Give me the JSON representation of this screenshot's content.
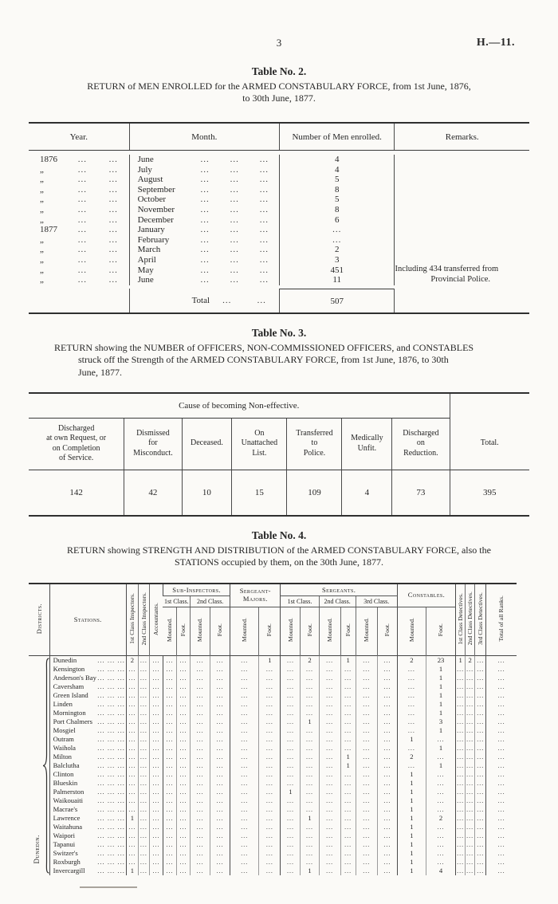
{
  "page": {
    "number": "3",
    "reference": "H.—11."
  },
  "leader": "...",
  "ditto": "„",
  "ink_color": "#262626",
  "paper_color": "#fbfaf7",
  "table2": {
    "title": "Table No. 2.",
    "subtitle_line1": "RETURN of MEN ENROLLED for the ARMED CONSTABULARY FORCE, from 1st June, 1876,",
    "subtitle_line2": "to 30th June, 1877.",
    "headers": {
      "year": "Year.",
      "month": "Month.",
      "number": "Number of Men enrolled.",
      "remarks": "Remarks."
    },
    "rows": [
      {
        "year": "1876",
        "month": "June",
        "number": "4"
      },
      {
        "year": "„",
        "month": "July",
        "number": "4"
      },
      {
        "year": "„",
        "month": "August",
        "number": "5"
      },
      {
        "year": "„",
        "month": "September",
        "number": "8"
      },
      {
        "year": "„",
        "month": "October",
        "number": "5"
      },
      {
        "year": "„",
        "month": "November",
        "number": "8"
      },
      {
        "year": "„",
        "month": "December",
        "number": "6"
      },
      {
        "year": "1877",
        "month": "January",
        "number": "..."
      },
      {
        "year": "„",
        "month": "February",
        "number": "..."
      },
      {
        "year": "„",
        "month": "March",
        "number": "2"
      },
      {
        "year": "„",
        "month": "April",
        "number": "3"
      },
      {
        "year": "„",
        "month": "May",
        "number": "451"
      },
      {
        "year": "„",
        "month": "June",
        "number": "11"
      }
    ],
    "total_label": "Total",
    "total_value": "507",
    "remark_line1": "Including 434 transferred from",
    "remark_line2": "Provincial Police."
  },
  "table3": {
    "title": "Table No. 3.",
    "subtitle_line1": "RETURN showing the NUMBER of OFFICERS, NON-COMMISSIONED OFFICERS, and CONSTABLES",
    "subtitle_line2": "struck off the Strength of the ARMED CONSTABULARY FORCE, from 1st June, 1876, to 30th",
    "subtitle_line3": "June, 1877.",
    "cause_header": "Cause of becoming Non-effective.",
    "columns": [
      {
        "label": "Discharged\nat own Request, or\non Completion\nof Service.",
        "value": "142"
      },
      {
        "label": "Dismissed\nfor\nMisconduct.",
        "value": "42"
      },
      {
        "label": "Deceased.",
        "value": "10"
      },
      {
        "label": "On\nUnattached\nList.",
        "value": "15"
      },
      {
        "label": "Transferred\nto\nPolice.",
        "value": "109"
      },
      {
        "label": "Medically\nUnfit.",
        "value": "4"
      },
      {
        "label": "Discharged\non\nReduction.",
        "value": "73"
      },
      {
        "label": "Total.",
        "value": "395"
      }
    ]
  },
  "table4": {
    "title": "Table No. 4.",
    "subtitle_line1": "RETURN showing STRENGTH AND DISTRIBUTION of the ARMED CONSTABULARY FORCE, also the",
    "subtitle_line2": "STATIONS occupied by them, on the 30th June, 1877.",
    "headers": {
      "districts": "Districts.",
      "stations": "Stations.",
      "inspectors_1st": "1st Class Inspectors.",
      "inspectors_2nd": "2nd Class Inspectors.",
      "accountants": "Accountants.",
      "sub_inspectors": "Sub-Inspectors.",
      "sergeant_majors": "Sergeant-Majors.",
      "sergeants": "Sergeants.",
      "constables": "Constables.",
      "class_1st": "1st Class.",
      "class_2nd": "2nd Class.",
      "class_3rd": "3rd Class.",
      "mounted": "Mounted.",
      "foot": "Foot.",
      "detectives_1st": "1st Class Detectives.",
      "detectives_2nd": "2nd Class Detectives.",
      "detectives_3rd": "3rd Class Detectives.",
      "total": "Total of all Ranks."
    },
    "district_label": "Dunedin.",
    "value_columns": [
      "inspectors_1st",
      "inspectors_2nd",
      "accountants",
      "si_1st_mounted",
      "si_1st_foot",
      "si_2nd_mounted",
      "si_2nd_foot",
      "sm_mounted",
      "sm_foot",
      "sgt_1st_mounted",
      "sgt_1st_foot",
      "sgt_2nd_mounted",
      "sgt_2nd_foot",
      "sgt_3rd_mounted",
      "sgt_3rd_foot",
      "constables_mounted",
      "constables_foot",
      "detectives_1st",
      "detectives_2nd",
      "detectives_3rd",
      "total"
    ],
    "rows": [
      {
        "station": "Dunedin",
        "values": [
          "2",
          "...",
          "...",
          "...",
          "...",
          "...",
          "...",
          "...",
          "1",
          "...",
          "2",
          "...",
          "1",
          "...",
          "...",
          "2",
          "23",
          "1",
          "2",
          "...",
          "..."
        ]
      },
      {
        "station": "Kensington",
        "values": [
          "...",
          "...",
          "...",
          "...",
          "...",
          "...",
          "...",
          "...",
          "...",
          "...",
          "...",
          "...",
          "...",
          "...",
          "...",
          "...",
          "1",
          "...",
          "...",
          "...",
          "..."
        ]
      },
      {
        "station": "Anderson's Bay",
        "values": [
          "...",
          "...",
          "...",
          "...",
          "...",
          "...",
          "...",
          "...",
          "...",
          "...",
          "...",
          "...",
          "...",
          "...",
          "...",
          "...",
          "1",
          "...",
          "...",
          "...",
          "..."
        ]
      },
      {
        "station": "Caversham",
        "values": [
          "...",
          "...",
          "...",
          "...",
          "...",
          "...",
          "...",
          "...",
          "...",
          "...",
          "...",
          "...",
          "...",
          "...",
          "...",
          "...",
          "1",
          "...",
          "...",
          "...",
          "..."
        ]
      },
      {
        "station": "Green Island",
        "values": [
          "...",
          "...",
          "...",
          "...",
          "...",
          "...",
          "...",
          "...",
          "...",
          "...",
          "...",
          "...",
          "...",
          "...",
          "...",
          "...",
          "1",
          "...",
          "...",
          "...",
          "..."
        ]
      },
      {
        "station": "Linden",
        "values": [
          "...",
          "...",
          "...",
          "...",
          "...",
          "...",
          "...",
          "...",
          "...",
          "...",
          "...",
          "...",
          "...",
          "...",
          "...",
          "...",
          "1",
          "...",
          "...",
          "...",
          "..."
        ]
      },
      {
        "station": "Mornington",
        "values": [
          "...",
          "...",
          "...",
          "...",
          "...",
          "...",
          "...",
          "...",
          "...",
          "...",
          "...",
          "...",
          "...",
          "...",
          "...",
          "...",
          "1",
          "...",
          "...",
          "...",
          "..."
        ]
      },
      {
        "station": "Port Chalmers",
        "values": [
          "...",
          "...",
          "...",
          "...",
          "...",
          "...",
          "...",
          "...",
          "...",
          "...",
          "1",
          "...",
          "...",
          "...",
          "...",
          "...",
          "3",
          "...",
          "...",
          "...",
          "..."
        ]
      },
      {
        "station": "Mosgiel",
        "values": [
          "...",
          "...",
          "...",
          "...",
          "...",
          "...",
          "...",
          "...",
          "...",
          "...",
          "...",
          "...",
          "...",
          "...",
          "...",
          "...",
          "1",
          "...",
          "...",
          "...",
          "..."
        ]
      },
      {
        "station": "Outram",
        "values": [
          "...",
          "...",
          "...",
          "...",
          "...",
          "...",
          "...",
          "...",
          "...",
          "...",
          "...",
          "...",
          "...",
          "...",
          "...",
          "1",
          "...",
          "...",
          "...",
          "...",
          "..."
        ]
      },
      {
        "station": "Waihola",
        "values": [
          "...",
          "...",
          "...",
          "...",
          "...",
          "...",
          "...",
          "...",
          "...",
          "...",
          "...",
          "...",
          "...",
          "...",
          "...",
          "...",
          "1",
          "...",
          "...",
          "...",
          "..."
        ]
      },
      {
        "station": "Milton",
        "values": [
          "...",
          "...",
          "...",
          "...",
          "...",
          "...",
          "...",
          "...",
          "...",
          "...",
          "...",
          "...",
          "1",
          "...",
          "...",
          "2",
          "...",
          "...",
          "...",
          "...",
          "..."
        ]
      },
      {
        "station": "Balclutha",
        "values": [
          "...",
          "...",
          "...",
          "...",
          "...",
          "...",
          "...",
          "...",
          "...",
          "...",
          "...",
          "...",
          "1",
          "...",
          "...",
          "...",
          "1",
          "...",
          "...",
          "...",
          "..."
        ]
      },
      {
        "station": "Clinton",
        "values": [
          "...",
          "...",
          "...",
          "...",
          "...",
          "...",
          "...",
          "...",
          "...",
          "...",
          "...",
          "...",
          "...",
          "...",
          "...",
          "1",
          "...",
          "...",
          "...",
          "...",
          "..."
        ]
      },
      {
        "station": "Blueskin",
        "values": [
          "...",
          "...",
          "...",
          "...",
          "...",
          "...",
          "...",
          "...",
          "...",
          "...",
          "...",
          "...",
          "...",
          "...",
          "...",
          "1",
          "...",
          "...",
          "...",
          "...",
          "..."
        ]
      },
      {
        "station": "Palmerston",
        "values": [
          "...",
          "...",
          "...",
          "...",
          "...",
          "...",
          "...",
          "...",
          "...",
          "1",
          "...",
          "...",
          "...",
          "...",
          "...",
          "1",
          "...",
          "...",
          "...",
          "...",
          "..."
        ]
      },
      {
        "station": "Waikouaiti",
        "values": [
          "...",
          "...",
          "...",
          "...",
          "...",
          "...",
          "...",
          "...",
          "...",
          "...",
          "...",
          "...",
          "...",
          "...",
          "...",
          "1",
          "...",
          "...",
          "...",
          "...",
          "..."
        ]
      },
      {
        "station": "Macrae's",
        "values": [
          "...",
          "...",
          "...",
          "...",
          "...",
          "...",
          "...",
          "...",
          "...",
          "...",
          "...",
          "...",
          "...",
          "...",
          "...",
          "1",
          "...",
          "...",
          "...",
          "...",
          "..."
        ]
      },
      {
        "station": "Lawrence",
        "values": [
          "1",
          "...",
          "...",
          "...",
          "...",
          "...",
          "...",
          "...",
          "...",
          "...",
          "1",
          "...",
          "...",
          "...",
          "...",
          "1",
          "2",
          "...",
          "...",
          "...",
          "..."
        ]
      },
      {
        "station": "Waitahuna",
        "values": [
          "...",
          "...",
          "...",
          "...",
          "...",
          "...",
          "...",
          "...",
          "...",
          "...",
          "...",
          "...",
          "...",
          "...",
          "...",
          "1",
          "...",
          "...",
          "...",
          "...",
          "..."
        ]
      },
      {
        "station": "Waipori",
        "values": [
          "...",
          "...",
          "...",
          "...",
          "...",
          "...",
          "...",
          "...",
          "...",
          "...",
          "...",
          "...",
          "...",
          "...",
          "...",
          "1",
          "...",
          "...",
          "...",
          "...",
          "..."
        ]
      },
      {
        "station": "Tapanui",
        "values": [
          "...",
          "...",
          "...",
          "...",
          "...",
          "...",
          "...",
          "...",
          "...",
          "...",
          "...",
          "...",
          "...",
          "...",
          "...",
          "1",
          "...",
          "...",
          "...",
          "...",
          "..."
        ]
      },
      {
        "station": "Switzer's",
        "values": [
          "...",
          "...",
          "...",
          "...",
          "...",
          "...",
          "...",
          "...",
          "...",
          "...",
          "...",
          "...",
          "...",
          "...",
          "...",
          "1",
          "...",
          "...",
          "...",
          "...",
          "..."
        ]
      },
      {
        "station": "Roxburgh",
        "values": [
          "...",
          "...",
          "...",
          "...",
          "...",
          "...",
          "...",
          "...",
          "...",
          "...",
          "...",
          "...",
          "...",
          "...",
          "...",
          "1",
          "...",
          "...",
          "...",
          "...",
          "..."
        ]
      },
      {
        "station": "Invercargill",
        "values": [
          "1",
          "...",
          "...",
          "...",
          "...",
          "...",
          "...",
          "...",
          "...",
          "...",
          "1",
          "...",
          "...",
          "...",
          "...",
          "1",
          "4",
          "...",
          "...",
          "...",
          "..."
        ]
      }
    ]
  }
}
